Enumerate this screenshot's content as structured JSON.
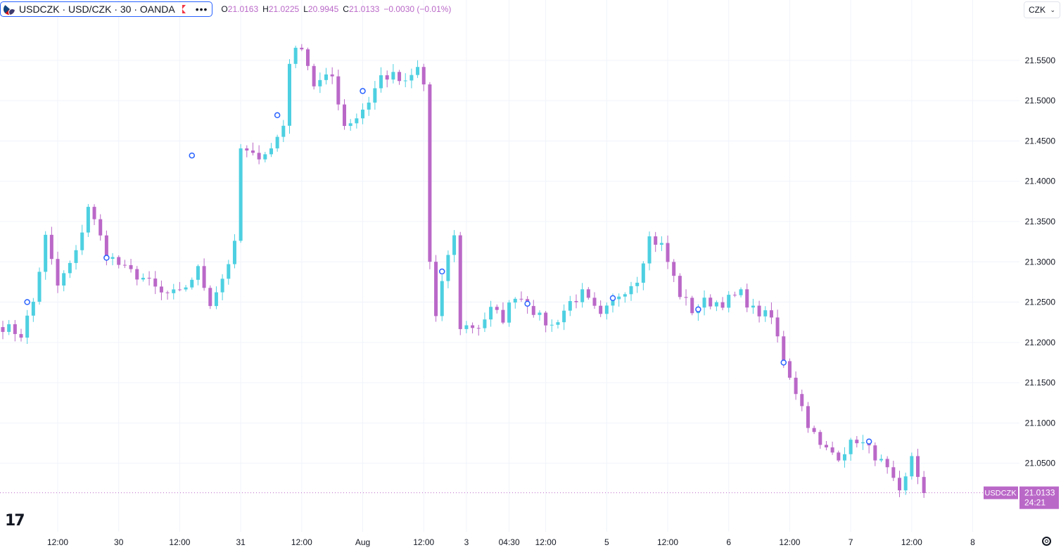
{
  "legend": {
    "symbol": "USDCZK · USD/CZK · 30 · OANDA",
    "open_key": "O",
    "open": "21.0163",
    "high_key": "H",
    "high": "21.0225",
    "low_key": "L",
    "low": "20.9945",
    "close_key": "C",
    "close": "21.0133",
    "change": "−0.0030 (−0.01%)"
  },
  "currency_select": {
    "value": "CZK"
  },
  "price_tag": {
    "label": "USDCZK",
    "price": "21.0133",
    "countdown": "24:21"
  },
  "colors": {
    "up": "#4dd0e1",
    "down": "#ba68c8",
    "grid": "#f0f3fa",
    "axis_text": "#131722"
  },
  "chart_data": {
    "type": "candlestick",
    "interval": "30",
    "ylim": [
      20.965,
      21.625
    ],
    "y_ticks": [
      21.05,
      21.1,
      21.15,
      21.2,
      21.25,
      21.3,
      21.35,
      21.4,
      21.45,
      21.5,
      21.55
    ],
    "y_tick_labels": [
      "21.0500",
      "21.1000",
      "21.1500",
      "21.2000",
      "21.2500",
      "21.3000",
      "21.3500",
      "21.4000",
      "21.4500",
      "21.5000",
      "21.5500"
    ],
    "x_labels": [
      "12:00",
      "30",
      "12:00",
      "31",
      "12:00",
      "Aug",
      "12:00",
      "3",
      "04:30",
      "12:00",
      "5",
      "12:00",
      "6",
      "12:00",
      "7",
      "12:00",
      "8"
    ],
    "x_label_bar": [
      9,
      19,
      29,
      39,
      49,
      59,
      69,
      76,
      83,
      89,
      99,
      109,
      119,
      129,
      139,
      149,
      159
    ],
    "bars_total": 152,
    "anchors": [
      [
        0,
        21.22
      ],
      [
        3,
        21.21
      ],
      [
        5,
        21.25
      ],
      [
        7,
        21.33
      ],
      [
        9,
        21.27
      ],
      [
        12,
        21.31
      ],
      [
        14,
        21.37
      ],
      [
        17,
        21.31
      ],
      [
        20,
        21.29
      ],
      [
        23,
        21.28
      ],
      [
        26,
        21.26
      ],
      [
        29,
        21.26
      ],
      [
        32,
        21.29
      ],
      [
        34,
        21.25
      ],
      [
        36,
        21.28
      ],
      [
        38,
        21.32
      ],
      [
        39,
        21.44
      ],
      [
        41,
        21.43
      ],
      [
        44,
        21.44
      ],
      [
        46,
        21.47
      ],
      [
        47,
        21.55
      ],
      [
        49,
        21.57
      ],
      [
        51,
        21.52
      ],
      [
        54,
        21.53
      ],
      [
        56,
        21.47
      ],
      [
        58,
        21.48
      ],
      [
        60,
        21.5
      ],
      [
        62,
        21.53
      ],
      [
        64,
        21.53
      ],
      [
        66,
        21.52
      ],
      [
        68,
        21.54
      ],
      [
        69,
        21.52
      ],
      [
        70,
        21.3
      ],
      [
        71,
        21.23
      ],
      [
        73,
        21.31
      ],
      [
        74,
        21.33
      ],
      [
        75,
        21.22
      ],
      [
        78,
        21.22
      ],
      [
        80,
        21.24
      ],
      [
        82,
        21.23
      ],
      [
        84,
        21.26
      ],
      [
        86,
        21.25
      ],
      [
        88,
        21.23
      ],
      [
        90,
        21.22
      ],
      [
        93,
        21.25
      ],
      [
        95,
        21.26
      ],
      [
        98,
        21.23
      ],
      [
        101,
        21.26
      ],
      [
        104,
        21.28
      ],
      [
        106,
        21.33
      ],
      [
        108,
        21.32
      ],
      [
        111,
        21.26
      ],
      [
        113,
        21.24
      ],
      [
        115,
        21.25
      ],
      [
        118,
        21.25
      ],
      [
        121,
        21.26
      ],
      [
        123,
        21.24
      ],
      [
        126,
        21.23
      ],
      [
        128,
        21.18
      ],
      [
        130,
        21.14
      ],
      [
        132,
        21.1
      ],
      [
        134,
        21.07
      ],
      [
        137,
        21.06
      ],
      [
        140,
        21.08
      ],
      [
        143,
        21.06
      ],
      [
        145,
        21.04
      ],
      [
        147,
        21.01
      ],
      [
        148,
        21.03
      ],
      [
        149,
        21.06
      ],
      [
        151,
        21.013
      ]
    ],
    "signal_markers": [
      [
        4,
        21.25
      ],
      [
        17,
        21.305
      ],
      [
        31,
        21.432
      ],
      [
        45,
        21.482
      ],
      [
        59,
        21.512
      ],
      [
        72,
        21.288
      ],
      [
        86,
        21.248
      ],
      [
        100,
        21.255
      ],
      [
        114,
        21.241
      ],
      [
        128,
        21.175
      ],
      [
        142,
        21.077
      ]
    ],
    "last_price": 21.0133
  }
}
